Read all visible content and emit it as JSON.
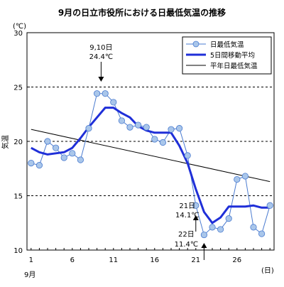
{
  "chart_data": {
    "type": "line",
    "title": "9月の日立市役所における日最低気温の推移",
    "unit_label": "(℃)",
    "ylabel": "気温",
    "xunit_label": "(日)",
    "month_label": "9月",
    "x": [
      1,
      2,
      3,
      4,
      5,
      6,
      7,
      8,
      9,
      10,
      11,
      12,
      13,
      14,
      15,
      16,
      17,
      18,
      19,
      20,
      21,
      22,
      23,
      24,
      25,
      26,
      27,
      28,
      29,
      30
    ],
    "xticks": [
      1,
      6,
      11,
      16,
      21,
      26
    ],
    "ylim": [
      10,
      30
    ],
    "yticks": [
      10,
      15,
      20,
      25,
      30
    ],
    "gridlines_y": [
      15,
      20,
      25
    ],
    "legend_position": "top-right",
    "series": [
      {
        "name": "日最低気温",
        "style": "line-with-circle-markers",
        "color": "#4a7bd0",
        "marker_fill": "#a9c6ea",
        "values": [
          18.0,
          17.8,
          20.0,
          19.4,
          18.5,
          18.9,
          18.3,
          21.2,
          24.4,
          24.4,
          23.6,
          21.9,
          21.3,
          21.5,
          21.3,
          20.2,
          19.9,
          21.1,
          21.2,
          18.7,
          14.1,
          11.4,
          12.1,
          11.9,
          12.9,
          16.5,
          16.8,
          12.1,
          11.5,
          14.1
        ]
      },
      {
        "name": "5日間移動平均",
        "style": "thick-line",
        "color": "#1f2fd8",
        "x": [
          1,
          2,
          3,
          4,
          5,
          6,
          7,
          8,
          9,
          10,
          11,
          12,
          13,
          14,
          15,
          16,
          17,
          18,
          19,
          20,
          21,
          22,
          23,
          24,
          25,
          26,
          27,
          28,
          29,
          30
        ],
        "values": [
          19.4,
          19.0,
          18.8,
          18.9,
          19.0,
          19.4,
          20.3,
          21.3,
          22.2,
          23.1,
          23.1,
          22.6,
          22.2,
          21.4,
          21.0,
          20.8,
          20.8,
          20.8,
          19.6,
          18.0,
          15.6,
          13.5,
          12.5,
          13.0,
          14.0,
          14.0,
          14.0,
          14.1,
          13.9,
          13.9
        ]
      },
      {
        "name": "平年日最低気温",
        "style": "thin-line",
        "color": "#000000",
        "x": [
          1,
          30
        ],
        "values": [
          21.1,
          16.3
        ]
      }
    ],
    "annotations": [
      {
        "lines": [
          "9,10日",
          "24.4℃"
        ],
        "x": 9.5,
        "y": 24.4,
        "arrow": "down"
      },
      {
        "lines": [
          "21日",
          "14.1℃"
        ],
        "x": 21,
        "y": 14.1,
        "arrow": "up"
      },
      {
        "lines": [
          "22日",
          "11.4℃"
        ],
        "x": 22,
        "y": 11.4,
        "arrow": "up"
      }
    ]
  }
}
